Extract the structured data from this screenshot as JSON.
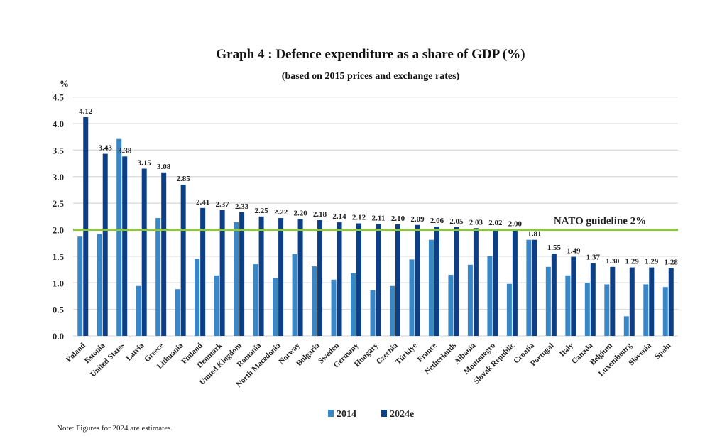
{
  "chart_data": {
    "type": "bar",
    "title": "Graph 4 : Defence expenditure as a share of GDP (%)",
    "subtitle": "(based on 2015 prices and exchange rates)",
    "ylabel": "%",
    "ylim": [
      0,
      4.5
    ],
    "yticks": [
      "0.0",
      "0.5",
      "1.0",
      "1.5",
      "2.0",
      "2.5",
      "3.0",
      "3.5",
      "4.0",
      "4.5"
    ],
    "grid": true,
    "legend_position": "bottom",
    "categories": [
      "Poland",
      "Estonia",
      "United States",
      "Latvia",
      "Greece",
      "Lithuania",
      "Finland",
      "Denmark",
      "United Kingdom",
      "Romania",
      "North Macedonia",
      "Norway",
      "Bulgaria",
      "Sweden",
      "Germany",
      "Hungary",
      "Czechia",
      "Türkiye",
      "France",
      "Netherlands",
      "Albania",
      "Montenegro",
      "Slovak Republic",
      "Croatia",
      "Portugal",
      "Italy",
      "Canada",
      "Belgium",
      "Luxembourg",
      "Slovenia",
      "Spain"
    ],
    "series": [
      {
        "name": "2014",
        "color": "#3a87c8",
        "values": [
          1.87,
          1.92,
          3.71,
          0.94,
          2.22,
          0.88,
          1.45,
          1.14,
          2.14,
          1.35,
          1.09,
          1.54,
          1.31,
          1.06,
          1.18,
          0.86,
          0.94,
          1.44,
          1.81,
          1.15,
          1.34,
          1.5,
          0.98,
          1.81,
          1.3,
          1.14,
          1.0,
          0.97,
          0.37,
          0.97,
          0.92
        ]
      },
      {
        "name": "2024e",
        "color": "#0d3f86",
        "values": [
          4.12,
          3.43,
          3.38,
          3.15,
          3.08,
          2.85,
          2.41,
          2.37,
          2.33,
          2.25,
          2.22,
          2.2,
          2.18,
          2.14,
          2.12,
          2.11,
          2.1,
          2.09,
          2.06,
          2.05,
          2.03,
          2.02,
          2.0,
          1.81,
          1.55,
          1.49,
          1.37,
          1.3,
          1.29,
          1.29,
          1.28
        ],
        "data_labels": [
          "4.12",
          "3.43",
          "3.38",
          "3.15",
          "3.08",
          "2.85",
          "2.41",
          "2.37",
          "2.33",
          "2.25",
          "2.22",
          "2.20",
          "2.18",
          "2.14",
          "2.12",
          "2.11",
          "2.10",
          "2.09",
          "2.06",
          "2.05",
          "2.03",
          "2.02",
          "2.00",
          "1.81",
          "1.55",
          "1.49",
          "1.37",
          "1.30",
          "1.29",
          "1.29",
          "1.28"
        ]
      }
    ],
    "reference_line": {
      "value": 2.0,
      "label": "NATO guideline 2%",
      "color": "#8dc63f"
    },
    "note": "Note: Figures for 2024 are estimates."
  }
}
